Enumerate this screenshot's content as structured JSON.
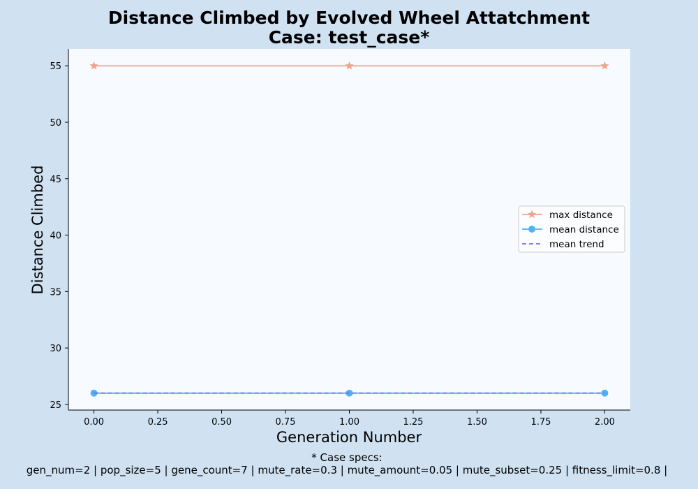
{
  "chart_data": {
    "type": "line",
    "title": "Distance Climbed by Evolved Wheel Attatchment",
    "subtitle": "Case: test_case*",
    "xlabel": "Generation Number",
    "ylabel": "Distance Climbed",
    "x": [
      0,
      1,
      2
    ],
    "xlim": [
      -0.1,
      2.1
    ],
    "ylim": [
      24.5,
      56.5
    ],
    "xticks": [
      0,
      0.25,
      0.5,
      0.75,
      1.0,
      1.25,
      1.5,
      1.75,
      2.0
    ],
    "xtick_labels": [
      "0.00",
      "0.25",
      "0.50",
      "0.75",
      "1.00",
      "1.25",
      "1.50",
      "1.75",
      "2.00"
    ],
    "yticks": [
      25,
      30,
      35,
      40,
      45,
      50,
      55
    ],
    "ytick_labels": [
      "25",
      "30",
      "35",
      "40",
      "45",
      "50",
      "55"
    ],
    "grid": false,
    "legend_position": "center-right",
    "series": [
      {
        "name": "max distance",
        "values": [
          55,
          55,
          55
        ],
        "color": "#f0a58a",
        "marker": "star",
        "linestyle": "solid"
      },
      {
        "name": "mean distance",
        "values": [
          26,
          26,
          26
        ],
        "color": "#4db3f5",
        "marker": "circle",
        "linestyle": "solid"
      },
      {
        "name": "mean trend",
        "values": [
          26,
          26,
          26
        ],
        "color": "#7b68ee",
        "marker": "none",
        "linestyle": "dashed"
      }
    ],
    "footnote_title": "* Case specs:",
    "footnote_specs": "gen_num=2 | pop_size=5 | gene_count=7 | mute_rate=0.3 | mute_amount=0.05 | mute_subset=0.25 | fitness_limit=0.8 |"
  },
  "colors": {
    "figure_background": "#d0e2f2",
    "plot_background": "#f7fafe"
  }
}
